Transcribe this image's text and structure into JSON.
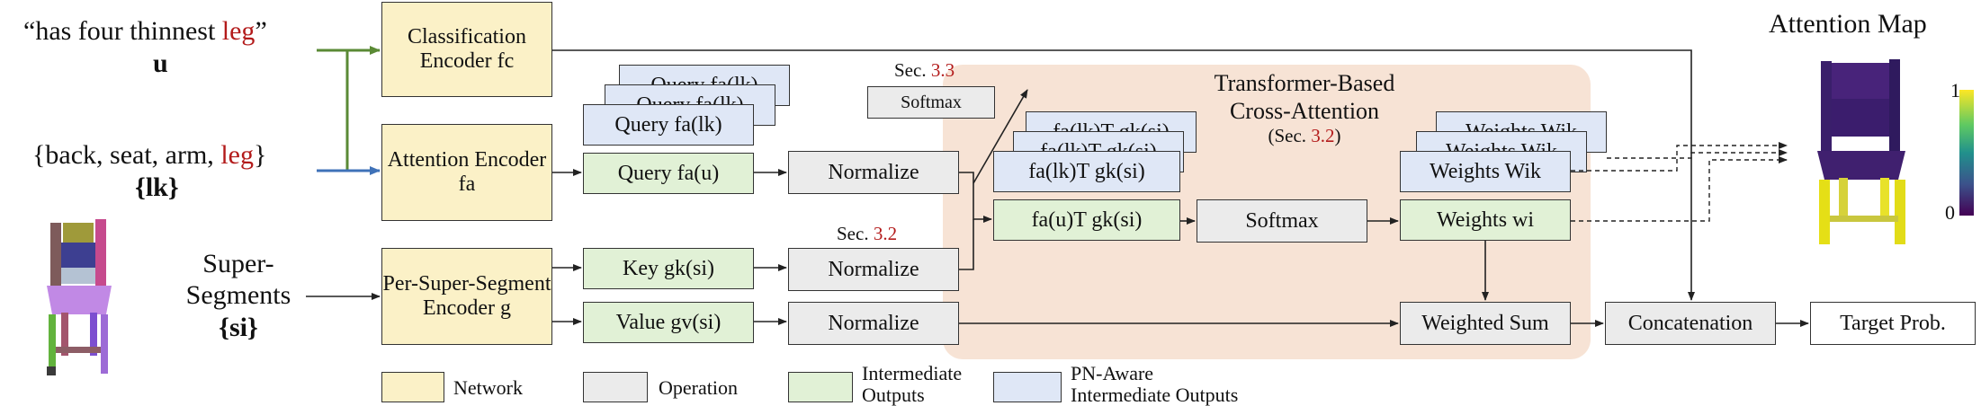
{
  "inputs": {
    "text_quote": "“has four thinnest ",
    "text_leg": "leg",
    "text_quote_end": "”",
    "u": "u",
    "parts_prefix": "{back, seat, arm, ",
    "parts_leg": "leg",
    "parts_suffix": "}",
    "lk": "{lk}",
    "super_label_1": "Super-",
    "super_label_2": "Segments",
    "si": "{si}"
  },
  "blocks": {
    "cls_encoder": "Classification Encoder fc",
    "attn_encoder": "Attention Encoder fa",
    "seg_encoder": "Per-Super-Segment Encoder g",
    "query_lk": "Query fa(lk)",
    "query_lk_back": "Query fa(lk)",
    "query_u": "Query fa(u)",
    "key": "Key gk(si)",
    "value": "Value gv(si)",
    "normalize_1": "Normalize",
    "normalize_2": "Normalize",
    "normalize_3": "Normalize",
    "softmax_small": "Softmax",
    "dot_lk": "fa(lk)T gk(si)",
    "dot_lk_back": "fa(lk)T gk(si)",
    "dot_u": "fa(u)T gk(si)",
    "softmax": "Softmax",
    "weights_ik": "Weights Wik",
    "weights_ik_back": "Weights Wik",
    "weights_i": "Weights wi",
    "weighted_sum": "Weighted Sum",
    "concatenation": "Concatenation",
    "target": "Target Prob."
  },
  "annotations": {
    "sec33_prefix": "Sec. ",
    "sec33_num": "3.3",
    "sec32_prefix": "Sec. ",
    "sec32_num": "3.2",
    "panel_title_1": "Transformer-Based",
    "panel_title_2": "Cross-Attention",
    "panel_sub_prefix": "(Sec. ",
    "panel_sub_num": "3.2",
    "panel_sub_suffix": ")"
  },
  "attention_map": {
    "title": "Attention Map",
    "scale_max": "1",
    "scale_min": "0"
  },
  "legend": {
    "network": "Network",
    "operation": "Operation",
    "intermediate_1": "Intermediate",
    "intermediate_2": "Outputs",
    "pn_1": "PN-Aware",
    "pn_2": "Intermediate Outputs"
  },
  "colors": {
    "network": "#fbf1c7",
    "operation": "#ebebeb",
    "intermediate": "#e1f1d6",
    "pn_aware": "#dfe7f6",
    "panel": "#f7e3d5",
    "highlight_red": "#b31b1b",
    "arrow_green": "#5a8a35",
    "arrow_blue": "#3f72b8"
  }
}
